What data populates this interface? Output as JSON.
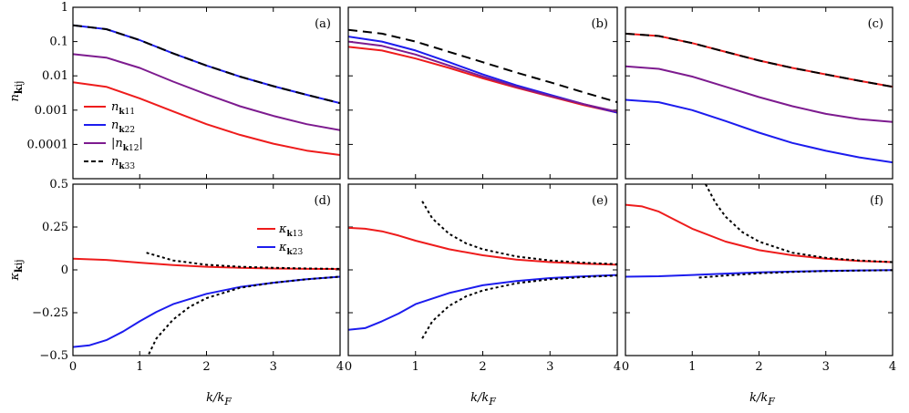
{
  "figure": {
    "x_axis_label": "k/k_F",
    "top_y_axis_label": "n_kij",
    "bottom_y_axis_label": "κ_kij"
  },
  "chart_data": [
    {
      "panel": "(a)",
      "type": "line",
      "ylog": true,
      "ylim": [
        1e-05,
        1
      ],
      "xlim": [
        0,
        4
      ],
      "x_ticks": [],
      "y_ticks": [
        1,
        0.1,
        0.01,
        0.001,
        0.0001
      ],
      "y_tick_labels": [
        "1",
        "0.1",
        "0.01",
        "0.001",
        "0.0001"
      ],
      "legend": {
        "location": "lower-left",
        "entries": [
          "n_k11",
          "n_k22",
          "|n_k12|",
          "n_k33"
        ]
      },
      "series": [
        {
          "name": "n_k11",
          "color": "#ee1c1c",
          "dash": "solid",
          "x": [
            0,
            0.5,
            1,
            1.5,
            2,
            2.5,
            3,
            3.5,
            4
          ],
          "y": [
            0.0065,
            0.0048,
            0.0022,
            0.00092,
            0.00039,
            0.00019,
            0.000105,
            6.6e-05,
            4.9e-05
          ]
        },
        {
          "name": "n_k22",
          "color": "#1c1cee",
          "dash": "solid",
          "x": [
            0,
            0.5,
            1,
            1.5,
            2,
            2.5,
            3,
            3.5,
            4
          ],
          "y": [
            0.3,
            0.23,
            0.11,
            0.045,
            0.02,
            0.0095,
            0.005,
            0.0028,
            0.0016
          ]
        },
        {
          "name": "|n_k12|",
          "color": "#7d1b8f",
          "dash": "solid",
          "x": [
            0,
            0.5,
            1,
            1.5,
            2,
            2.5,
            3,
            3.5,
            4
          ],
          "y": [
            0.043,
            0.034,
            0.017,
            0.0068,
            0.0029,
            0.0013,
            0.00068,
            0.00039,
            0.00026
          ]
        },
        {
          "name": "n_k33",
          "color": "#000000",
          "dash": "dashed",
          "x": [
            0,
            0.5,
            1,
            1.5,
            2,
            2.5,
            3,
            3.5,
            4
          ],
          "y": [
            0.3,
            0.23,
            0.11,
            0.045,
            0.02,
            0.0095,
            0.005,
            0.0028,
            0.0016
          ]
        }
      ]
    },
    {
      "panel": "(b)",
      "type": "line",
      "ylog": true,
      "ylim": [
        1e-05,
        1
      ],
      "xlim": [
        0,
        4
      ],
      "x_ticks": [],
      "y_ticks": [],
      "y_tick_labels": [],
      "series": [
        {
          "name": "n_k11",
          "color": "#ee1c1c",
          "dash": "solid",
          "x": [
            0,
            0.5,
            1,
            1.5,
            2,
            2.5,
            3,
            3.5,
            4
          ],
          "y": [
            0.07,
            0.055,
            0.032,
            0.017,
            0.0085,
            0.0045,
            0.0025,
            0.0014,
            0.00085
          ]
        },
        {
          "name": "n_k22",
          "color": "#1c1cee",
          "dash": "solid",
          "x": [
            0,
            0.5,
            1,
            1.5,
            2,
            2.5,
            3,
            3.5,
            4
          ],
          "y": [
            0.14,
            0.1,
            0.055,
            0.025,
            0.011,
            0.0053,
            0.0028,
            0.0015,
            0.00085
          ]
        },
        {
          "name": "|n_k12|",
          "color": "#7d1b8f",
          "dash": "solid",
          "x": [
            0,
            0.5,
            1,
            1.5,
            2,
            2.5,
            3,
            3.5,
            4
          ],
          "y": [
            0.1,
            0.075,
            0.042,
            0.02,
            0.0095,
            0.0048,
            0.0026,
            0.0015,
            0.0009
          ]
        },
        {
          "name": "n_k33",
          "color": "#000000",
          "dash": "dashed",
          "x": [
            0,
            0.5,
            1,
            1.5,
            2,
            2.5,
            3,
            3.5,
            4
          ],
          "y": [
            0.22,
            0.17,
            0.1,
            0.05,
            0.025,
            0.0125,
            0.0065,
            0.0033,
            0.0017
          ]
        }
      ]
    },
    {
      "panel": "(c)",
      "type": "line",
      "ylog": true,
      "ylim": [
        1e-05,
        1
      ],
      "xlim": [
        0,
        4
      ],
      "x_ticks": [],
      "y_ticks": [],
      "y_tick_labels": [],
      "series": [
        {
          "name": "n_k11",
          "color": "#ee1c1c",
          "dash": "solid",
          "x": [
            0,
            0.5,
            1,
            1.5,
            2,
            2.5,
            3,
            3.5,
            4
          ],
          "y": [
            0.17,
            0.145,
            0.09,
            0.05,
            0.028,
            0.017,
            0.011,
            0.0072,
            0.0048
          ]
        },
        {
          "name": "n_k22",
          "color": "#1c1cee",
          "dash": "solid",
          "x": [
            0,
            0.5,
            1,
            1.5,
            2,
            2.5,
            3,
            3.5,
            4
          ],
          "y": [
            0.002,
            0.0017,
            0.001,
            0.00048,
            0.00022,
            0.00011,
            6.5e-05,
            4.2e-05,
            3e-05
          ]
        },
        {
          "name": "|n_k12|",
          "color": "#7d1b8f",
          "dash": "solid",
          "x": [
            0,
            0.5,
            1,
            1.5,
            2,
            2.5,
            3,
            3.5,
            4
          ],
          "y": [
            0.019,
            0.016,
            0.0095,
            0.0048,
            0.0024,
            0.0013,
            0.00078,
            0.00055,
            0.00045
          ]
        },
        {
          "name": "n_k33",
          "color": "#000000",
          "dash": "dashed",
          "x": [
            0,
            0.5,
            1,
            1.5,
            2,
            2.5,
            3,
            3.5,
            4
          ],
          "y": [
            0.17,
            0.145,
            0.09,
            0.05,
            0.028,
            0.017,
            0.011,
            0.0072,
            0.0048
          ]
        }
      ]
    },
    {
      "panel": "(d)",
      "type": "line",
      "ylog": false,
      "ylim": [
        -0.5,
        0.5
      ],
      "xlim": [
        0,
        4
      ],
      "x_ticks": [
        0,
        1,
        2,
        3,
        4
      ],
      "x_tick_labels": [
        "0",
        "1",
        "2",
        "3",
        "4"
      ],
      "y_ticks": [
        0.5,
        0.25,
        0,
        -0.25,
        -0.5
      ],
      "y_tick_labels": [
        "0.5",
        "0.25",
        "0",
        "−0.25",
        "−0.5"
      ],
      "legend": {
        "location": "top-center",
        "entries": [
          "κ_k13",
          "κ_k23"
        ]
      },
      "series": [
        {
          "name": "κ_k13",
          "color": "#ee1c1c",
          "dash": "solid",
          "x": [
            0,
            0.5,
            1,
            1.5,
            2,
            2.5,
            3,
            3.5,
            4
          ],
          "y": [
            0.065,
            0.058,
            0.042,
            0.028,
            0.018,
            0.012,
            0.008,
            0.006,
            0.005
          ]
        },
        {
          "name": "κ_k23",
          "color": "#1c1cee",
          "dash": "solid",
          "x": [
            0,
            0.25,
            0.5,
            0.75,
            1,
            1.25,
            1.5,
            2,
            2.5,
            3,
            3.5,
            4
          ],
          "y": [
            -0.45,
            -0.44,
            -0.41,
            -0.36,
            -0.3,
            -0.245,
            -0.2,
            -0.14,
            -0.1,
            -0.075,
            -0.055,
            -0.04
          ]
        },
        {
          "name": "",
          "color": "#000000",
          "dash": "dotted",
          "x": [
            1.1,
            1.5,
            2,
            2.5,
            3,
            3.5,
            4
          ],
          "y": [
            0.1,
            0.055,
            0.03,
            0.018,
            0.012,
            0.008,
            0.006
          ]
        },
        {
          "name": "",
          "color": "#000000",
          "dash": "dotted",
          "x": [
            1.1,
            1.25,
            1.5,
            1.75,
            2,
            2.5,
            3,
            3.5,
            4
          ],
          "y": [
            -0.52,
            -0.4,
            -0.29,
            -0.215,
            -0.165,
            -0.105,
            -0.075,
            -0.055,
            -0.04
          ]
        }
      ]
    },
    {
      "panel": "(e)",
      "type": "line",
      "ylog": false,
      "ylim": [
        -0.5,
        0.5
      ],
      "xlim": [
        0,
        4
      ],
      "x_ticks": [
        0,
        1,
        2,
        3,
        4
      ],
      "x_tick_labels": [
        "0",
        "1",
        "2",
        "3",
        "4"
      ],
      "y_ticks": [],
      "y_tick_labels": [],
      "series": [
        {
          "name": "κ_k13",
          "color": "#ee1c1c",
          "dash": "solid",
          "x": [
            0,
            0.25,
            0.5,
            0.75,
            1,
            1.5,
            2,
            2.5,
            3,
            3.5,
            4
          ],
          "y": [
            0.245,
            0.24,
            0.225,
            0.2,
            0.17,
            0.12,
            0.085,
            0.06,
            0.045,
            0.036,
            0.03
          ]
        },
        {
          "name": "κ_k23",
          "color": "#1c1cee",
          "dash": "solid",
          "x": [
            0,
            0.25,
            0.5,
            0.75,
            1,
            1.5,
            2,
            2.5,
            3,
            3.5,
            4
          ],
          "y": [
            -0.35,
            -0.34,
            -0.3,
            -0.255,
            -0.2,
            -0.135,
            -0.09,
            -0.065,
            -0.048,
            -0.038,
            -0.03
          ]
        },
        {
          "name": "",
          "color": "#000000",
          "dash": "dotted",
          "x": [
            1.1,
            1.25,
            1.5,
            1.75,
            2,
            2.5,
            3,
            3.5,
            4
          ],
          "y": [
            0.4,
            0.3,
            0.21,
            0.155,
            0.12,
            0.078,
            0.055,
            0.042,
            0.033
          ]
        },
        {
          "name": "",
          "color": "#000000",
          "dash": "dotted",
          "x": [
            1.1,
            1.25,
            1.5,
            1.75,
            2,
            2.5,
            3,
            3.5,
            4
          ],
          "y": [
            -0.4,
            -0.3,
            -0.21,
            -0.155,
            -0.12,
            -0.078,
            -0.055,
            -0.042,
            -0.033
          ]
        }
      ]
    },
    {
      "panel": "(f)",
      "type": "line",
      "ylog": false,
      "ylim": [
        -0.5,
        0.5
      ],
      "xlim": [
        0,
        4
      ],
      "x_ticks": [
        0,
        1,
        2,
        3,
        4
      ],
      "x_tick_labels": [
        "0",
        "1",
        "2",
        "3",
        "4"
      ],
      "y_ticks": [],
      "y_tick_labels": [],
      "series": [
        {
          "name": "κ_k13",
          "color": "#ee1c1c",
          "dash": "solid",
          "x": [
            0,
            0.25,
            0.5,
            0.75,
            1,
            1.5,
            2,
            2.5,
            3,
            3.5,
            4
          ],
          "y": [
            0.38,
            0.37,
            0.34,
            0.29,
            0.24,
            0.165,
            0.115,
            0.085,
            0.065,
            0.052,
            0.045
          ]
        },
        {
          "name": "κ_k23",
          "color": "#1c1cee",
          "dash": "solid",
          "x": [
            0,
            0.5,
            1,
            1.5,
            2,
            2.5,
            3,
            3.5,
            4
          ],
          "y": [
            -0.04,
            -0.037,
            -0.03,
            -0.022,
            -0.015,
            -0.01,
            -0.006,
            -0.003,
            -0.001
          ]
        },
        {
          "name": "",
          "color": "#000000",
          "dash": "dotted",
          "x": [
            1.2,
            1.35,
            1.5,
            1.75,
            2,
            2.5,
            3,
            3.5,
            4
          ],
          "y": [
            0.5,
            0.39,
            0.31,
            0.22,
            0.165,
            0.1,
            0.07,
            0.055,
            0.045
          ]
        },
        {
          "name": "",
          "color": "#000000",
          "dash": "dotted",
          "x": [
            1.1,
            1.5,
            2,
            2.5,
            3,
            3.5,
            4
          ],
          "y": [
            -0.045,
            -0.033,
            -0.02,
            -0.012,
            -0.007,
            -0.004,
            -0.002
          ]
        }
      ]
    }
  ]
}
